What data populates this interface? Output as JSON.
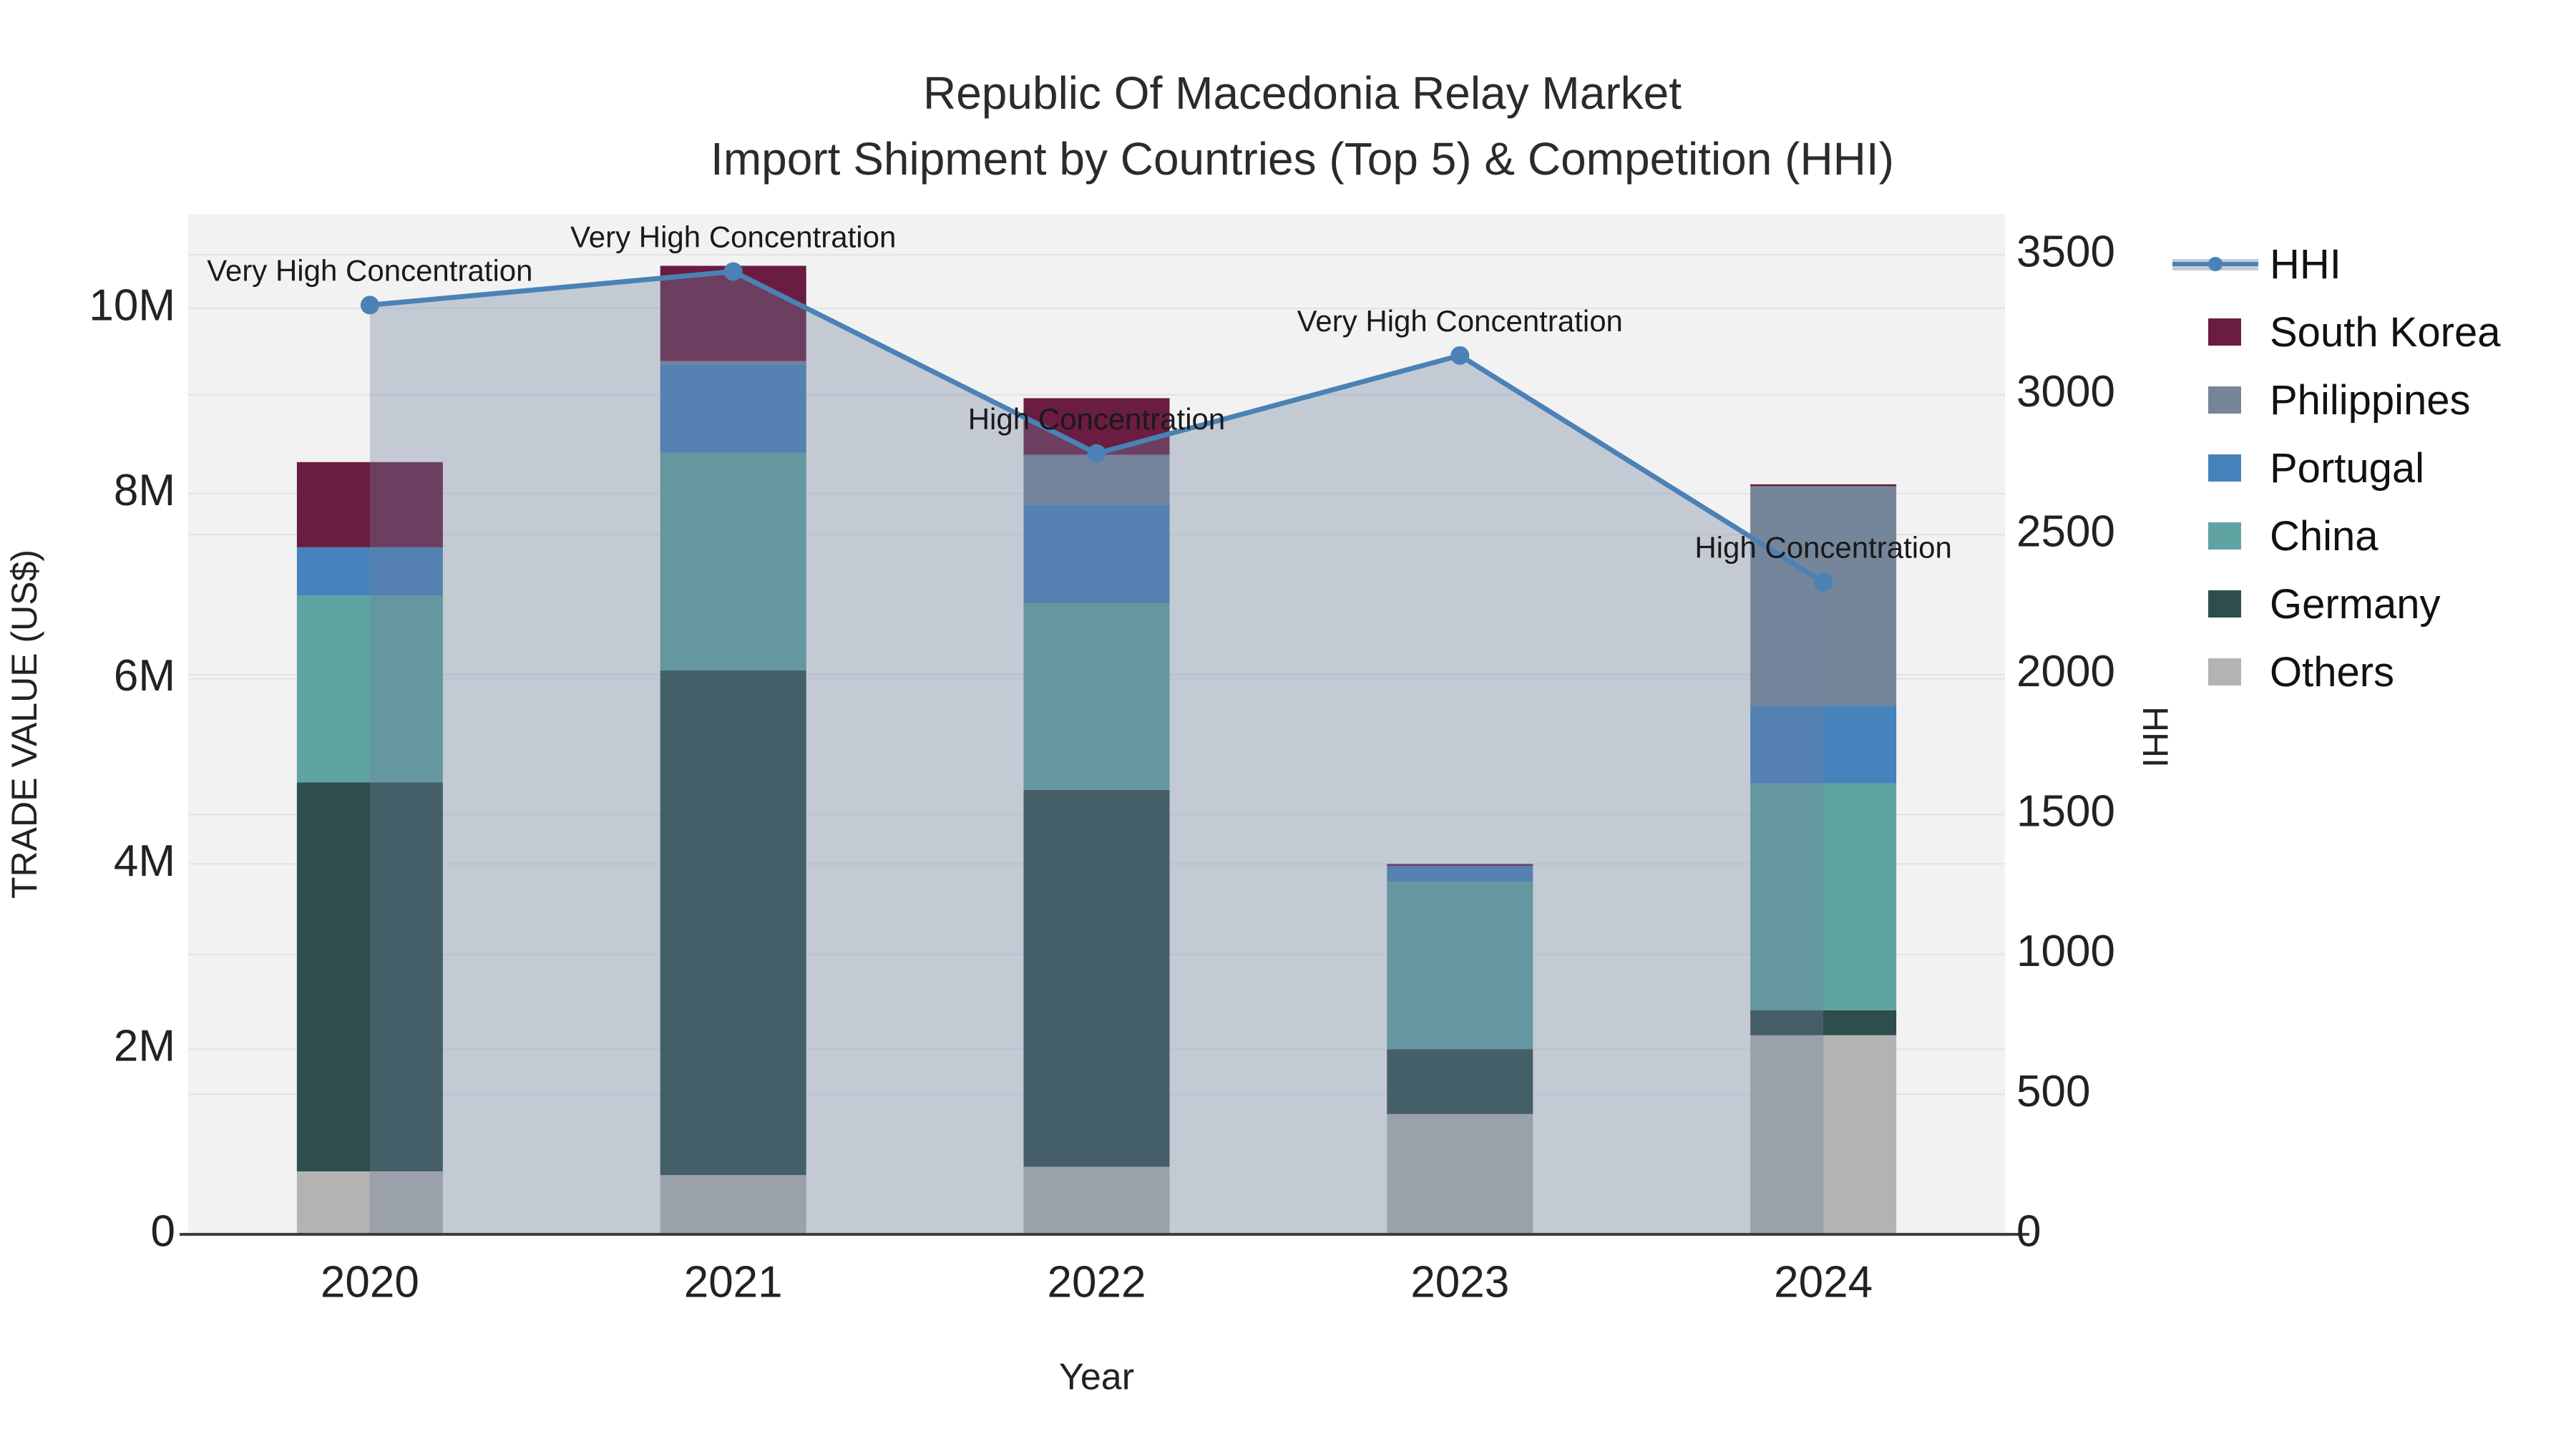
{
  "chart_data": {
    "type": "bar",
    "subtype": "stacked-bars-with-line-area-overlay",
    "title": "Republic Of Macedonia Relay Market",
    "subtitle": "Import Shipment by Countries (Top 5) & Competition (HHI)",
    "xlabel": "Year",
    "ylabel_left": "TRADE VALUE (US$)",
    "ylabel_right": "HHI",
    "categories": [
      "2020",
      "2021",
      "2022",
      "2023",
      "2024"
    ],
    "value_unit": "M",
    "series": [
      {
        "name": "Others",
        "color": "#b3b3b3",
        "values": [
          0.68,
          0.64,
          0.73,
          1.3,
          2.15
        ]
      },
      {
        "name": "Germany",
        "color": "#2e4e4d",
        "values": [
          4.2,
          5.45,
          4.07,
          0.7,
          0.27
        ]
      },
      {
        "name": "China",
        "color": "#5fa3a2",
        "values": [
          2.02,
          2.35,
          2.02,
          1.81,
          2.45
        ]
      },
      {
        "name": "Portugal",
        "color": "#4682bc",
        "values": [
          0.52,
          0.95,
          1.06,
          0.17,
          0.84
        ]
      },
      {
        "name": "Philippines",
        "color": "#75869a",
        "values": [
          0.0,
          0.04,
          0.54,
          0.0,
          2.37
        ]
      },
      {
        "name": "South Korea",
        "color": "#6a1c41",
        "values": [
          0.92,
          1.03,
          0.61,
          0.02,
          0.02
        ]
      }
    ],
    "hhi_line": {
      "name": "HHI",
      "line_color": "#4a82b6",
      "area_fill": "rgba(112,130,158,0.35)",
      "values": [
        3320,
        3440,
        2790,
        3140,
        2330
      ]
    },
    "annotations": [
      {
        "category": "2020",
        "text": "Very High Concentration"
      },
      {
        "category": "2021",
        "text": "Very High Concentration"
      },
      {
        "category": "2022",
        "text": "High Concentration"
      },
      {
        "category": "2023",
        "text": "Very High Concentration"
      },
      {
        "category": "2024",
        "text": "High Concentration"
      }
    ],
    "axes": {
      "left": {
        "tick_values": [
          0,
          2,
          4,
          6,
          8,
          10
        ],
        "tick_labels": [
          "0",
          "2M",
          "4M",
          "6M",
          "8M",
          "10M"
        ],
        "range": [
          0,
          11.0
        ]
      },
      "right": {
        "tick_values": [
          0,
          500,
          1000,
          1500,
          2000,
          2500,
          3000,
          3500
        ],
        "tick_labels": [
          "0",
          "500",
          "1000",
          "1500",
          "2000",
          "2500",
          "3000",
          "3500"
        ],
        "range": [
          0,
          3646
        ]
      },
      "grid": true
    },
    "legend": {
      "position": "right",
      "entries": [
        {
          "label": "HHI",
          "type": "line",
          "color": "#4a82b6"
        },
        {
          "label": "South Korea",
          "type": "swatch",
          "color": "#6a1c41"
        },
        {
          "label": "Philippines",
          "type": "swatch",
          "color": "#75869a"
        },
        {
          "label": "Portugal",
          "type": "swatch",
          "color": "#4682bc"
        },
        {
          "label": "China",
          "type": "swatch",
          "color": "#5fa3a2"
        },
        {
          "label": "Germany",
          "type": "swatch",
          "color": "#2e4e4d"
        },
        {
          "label": "Others",
          "type": "swatch",
          "color": "#b3b3b3"
        }
      ]
    },
    "colors": {
      "plot_bg": "#f2f2f2",
      "gridline": "#e1e3e8",
      "axis_line": "#3d3d3d",
      "text": "#222222"
    }
  }
}
